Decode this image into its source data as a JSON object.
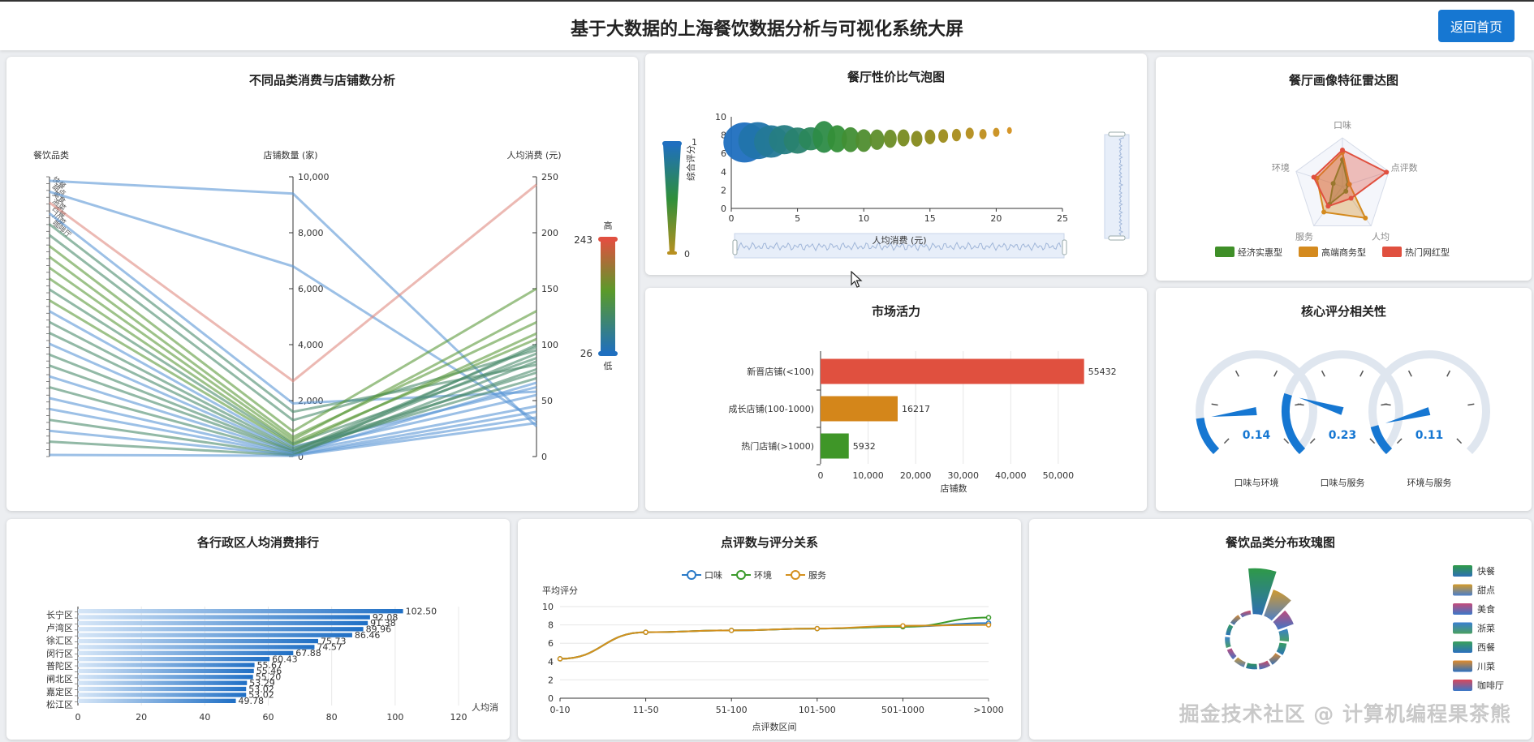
{
  "header": {
    "title": "基于大数据的上海餐饮数据分析与可视化系统大屏",
    "back_label": "返回首页"
  },
  "watermark": "掘金技术社区 @ 计算机编程果茶熊",
  "panels": {
    "parallel": {
      "title": "不同品类消费与店铺数分析"
    },
    "bubble": {
      "title": "餐厅性价比气泡图"
    },
    "radar": {
      "title": "餐厅画像特征雷达图"
    },
    "market": {
      "title": "市场活力"
    },
    "gauge": {
      "title": "核心评分相关性"
    },
    "district": {
      "title": "各行政区人均消费排行"
    },
    "line": {
      "title": "点评数与评分关系"
    },
    "rose": {
      "title": "餐饮品类分布玫瑰图"
    }
  },
  "chart_data": [
    {
      "id": "parallel",
      "type": "parallel",
      "axes": [
        "餐饮品类",
        "店铺数量 (家)",
        "人均消费 (元)"
      ],
      "count_ticks": [
        "0",
        "2,000",
        "4,000",
        "6,000",
        "8,000",
        "10,000"
      ],
      "price_ticks": [
        "0",
        "50",
        "100",
        "150",
        "200",
        "250"
      ],
      "category_labels": [
        "快餐",
        "甜点",
        "美食",
        "浙菜",
        "西餐",
        "川菜",
        "咖啡厅"
      ],
      "visual_map": {
        "max": 243,
        "min": 26,
        "high_label": "高",
        "low_label": "低"
      },
      "lines": [
        {
          "count": 9400,
          "price": 27
        },
        {
          "count": 6800,
          "price": 32
        },
        {
          "count": 2700,
          "price": 243
        },
        {
          "count": 1900,
          "price": 58
        },
        {
          "count": 1600,
          "price": 82
        },
        {
          "count": 1300,
          "price": 95
        },
        {
          "count": 900,
          "price": 150
        },
        {
          "count": 700,
          "price": 120
        },
        {
          "count": 600,
          "price": 130
        },
        {
          "count": 500,
          "price": 105
        },
        {
          "count": 450,
          "price": 88
        },
        {
          "count": 400,
          "price": 110
        },
        {
          "count": 350,
          "price": 62
        },
        {
          "count": 300,
          "price": 75
        },
        {
          "count": 250,
          "price": 70
        },
        {
          "count": 220,
          "price": 55
        },
        {
          "count": 200,
          "price": 98
        },
        {
          "count": 180,
          "price": 92
        },
        {
          "count": 150,
          "price": 45
        },
        {
          "count": 120,
          "price": 78
        },
        {
          "count": 100,
          "price": 66
        },
        {
          "count": 80,
          "price": 40
        },
        {
          "count": 60,
          "price": 85
        },
        {
          "count": 50,
          "price": 35
        },
        {
          "count": 40,
          "price": 100
        },
        {
          "count": 30,
          "price": 30
        }
      ]
    },
    {
      "id": "bubble",
      "type": "scatter",
      "xlabel": "人均消费 (元)",
      "ylabel": "综合评分",
      "xlim": [
        0,
        25
      ],
      "ylim": [
        0,
        10
      ],
      "xticks": [
        0,
        5,
        10,
        15,
        20,
        25
      ],
      "yticks": [
        0,
        2,
        4,
        6,
        8,
        10
      ],
      "visual_map": {
        "max": "1",
        "min": "0"
      },
      "points": [
        {
          "x": 1,
          "y": 7.2,
          "r": 26
        },
        {
          "x": 2,
          "y": 7.4,
          "r": 24
        },
        {
          "x": 3,
          "y": 7.3,
          "r": 21
        },
        {
          "x": 4,
          "y": 7.5,
          "r": 19
        },
        {
          "x": 5,
          "y": 7.4,
          "r": 17
        },
        {
          "x": 6,
          "y": 7.6,
          "r": 15
        },
        {
          "x": 7,
          "y": 7.8,
          "r": 14
        },
        {
          "x": 8,
          "y": 7.6,
          "r": 12
        },
        {
          "x": 9,
          "y": 7.5,
          "r": 11
        },
        {
          "x": 10,
          "y": 7.4,
          "r": 10
        },
        {
          "x": 11,
          "y": 7.5,
          "r": 9
        },
        {
          "x": 12,
          "y": 7.6,
          "r": 8
        },
        {
          "x": 13,
          "y": 7.7,
          "r": 7.5
        },
        {
          "x": 14,
          "y": 7.6,
          "r": 7
        },
        {
          "x": 15,
          "y": 7.8,
          "r": 6.5
        },
        {
          "x": 16,
          "y": 7.9,
          "r": 6
        },
        {
          "x": 17,
          "y": 8.0,
          "r": 5.5
        },
        {
          "x": 18,
          "y": 8.2,
          "r": 5
        },
        {
          "x": 19,
          "y": 8.1,
          "r": 4.5
        },
        {
          "x": 20,
          "y": 8.3,
          "r": 4
        },
        {
          "x": 21,
          "y": 8.5,
          "r": 3
        }
      ]
    },
    {
      "id": "radar",
      "type": "radar",
      "indicators": [
        "口味",
        "点评数",
        "人均",
        "服务",
        "环境"
      ],
      "series": [
        {
          "name": "经济实惠型",
          "color": "#3f8f28",
          "values": [
            0.55,
            0.12,
            0.12,
            0.45,
            0.2
          ]
        },
        {
          "name": "高端商务型",
          "color": "#d48a1e",
          "values": [
            0.7,
            0.15,
            0.8,
            0.65,
            0.55
          ]
        },
        {
          "name": "热门网红型",
          "color": "#e0503f",
          "values": [
            0.75,
            0.95,
            0.3,
            0.5,
            0.62
          ]
        }
      ]
    },
    {
      "id": "market",
      "type": "bar",
      "orientation": "horizontal",
      "categories": [
        "热门店铺(>1000)",
        "成长店铺(100-1000)",
        "新晋店铺(<100)"
      ],
      "values": [
        5932,
        16217,
        55432
      ],
      "colors": [
        "#3f9628",
        "#d4861a",
        "#e0503f"
      ],
      "xlabel": "店铺数",
      "xlim": [
        0,
        56000
      ],
      "xticks": [
        "0",
        "10,000",
        "20,000",
        "30,000",
        "40,000",
        "50,000"
      ]
    },
    {
      "id": "gauge",
      "type": "gauge",
      "gauges": [
        {
          "value": "0.14",
          "label": "口味与环境"
        },
        {
          "value": "0.23",
          "label": "口味与服务"
        },
        {
          "value": "0.11",
          "label": "环境与服务"
        }
      ]
    },
    {
      "id": "district",
      "type": "bar",
      "orientation": "horizontal",
      "xlabel": "人均消",
      "xlim": [
        0,
        120
      ],
      "xticks": [
        "0",
        "20",
        "40",
        "60",
        "80",
        "100",
        "120"
      ],
      "category_labels": [
        "长宁区",
        "卢湾区",
        "徐汇区",
        "闵行区",
        "普陀区",
        "闸北区",
        "嘉定区",
        "松江区"
      ],
      "values": [
        102.5,
        92.08,
        91.38,
        89.96,
        86.46,
        75.73,
        74.57,
        67.88,
        60.43,
        55.67,
        55.46,
        55.2,
        53.29,
        53.02,
        53.02,
        49.78
      ],
      "value_labels": [
        "102.50",
        "92.08",
        "91.38",
        "89.96",
        "86.46",
        "75.73",
        "74.57",
        "67.88",
        "60.43",
        "55.67",
        "55.46",
        "55.20",
        "53.29",
        "53.02",
        "53.02",
        "49.78"
      ]
    },
    {
      "id": "line",
      "type": "line",
      "ylabel": "平均评分",
      "xlabel": "点评数区间",
      "categories": [
        "0-10",
        "11-50",
        "51-100",
        "101-500",
        "501-1000",
        ">1000"
      ],
      "ylim": [
        0,
        10
      ],
      "yticks": [
        0,
        2,
        4,
        6,
        8,
        10
      ],
      "series": [
        {
          "name": "口味",
          "color": "#2a7ac7",
          "values": [
            4.3,
            7.2,
            7.4,
            7.6,
            7.8,
            8.2
          ]
        },
        {
          "name": "环境",
          "color": "#3a9a2a",
          "values": [
            4.3,
            7.2,
            7.4,
            7.6,
            7.8,
            8.8
          ]
        },
        {
          "name": "服务",
          "color": "#d4901e",
          "values": [
            4.3,
            7.2,
            7.4,
            7.6,
            7.9,
            8.0
          ]
        }
      ]
    },
    {
      "id": "rose",
      "type": "pie",
      "rose": true,
      "legend": [
        "快餐",
        "甜点",
        "美食",
        "浙菜",
        "西餐",
        "川菜",
        "咖啡厅"
      ],
      "legend_colors": [
        [
          "#2e9a46",
          "#2e6fb5"
        ],
        [
          "#d49a2a",
          "#4a7ec9"
        ],
        [
          "#c54a7a",
          "#3a78c8"
        ],
        [
          "#3a7fd0",
          "#4aa060"
        ],
        [
          "#3aa05a",
          "#2b6fbf"
        ],
        [
          "#e08a2a",
          "#2b6fbf"
        ],
        [
          "#d9465a",
          "#3a78c8"
        ]
      ],
      "values": [
        100,
        62,
        38,
        22,
        18,
        16,
        15,
        14,
        14,
        13,
        13,
        12,
        12,
        11
      ]
    }
  ]
}
